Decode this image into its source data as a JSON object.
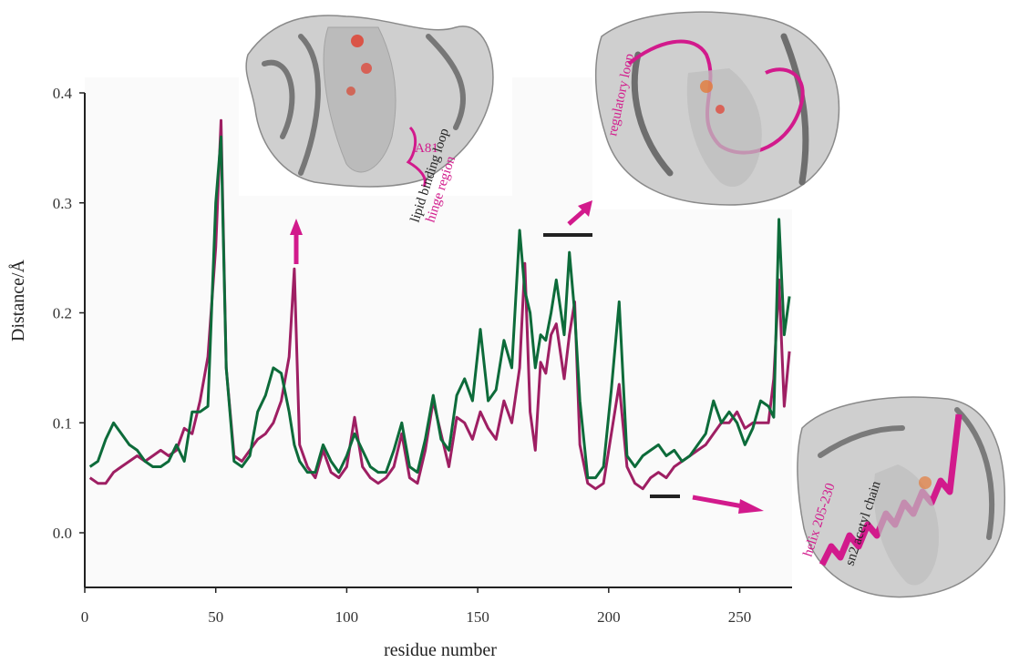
{
  "chart_data": {
    "type": "line",
    "xlabel": "residue number",
    "ylabel": "Distance/Å",
    "xlim": [
      0,
      270
    ],
    "ylim": [
      -0.05,
      0.4
    ],
    "x_ticks": [
      0,
      50,
      100,
      150,
      200,
      250
    ],
    "y_ticks": [
      0.0,
      0.1,
      0.2,
      0.3,
      0.4
    ],
    "y_tick_labels": [
      "0.0",
      "0.1",
      "0.2",
      "0.3",
      "0.4"
    ],
    "grid": false,
    "colors": {
      "series_magenta": "#9e1f63",
      "series_green": "#0d6b3a",
      "accent": "#d21a8c"
    },
    "series": [
      {
        "color": "#9e1f63",
        "x": [
          2,
          5,
          8,
          11,
          14,
          17,
          20,
          23,
          26,
          29,
          32,
          35,
          38,
          41,
          44,
          47,
          50,
          52,
          54,
          57,
          60,
          63,
          66,
          69,
          72,
          75,
          78,
          80,
          82,
          85,
          88,
          91,
          94,
          97,
          100,
          103,
          106,
          109,
          112,
          115,
          118,
          121,
          124,
          127,
          130,
          133,
          136,
          139,
          142,
          145,
          148,
          151,
          154,
          157,
          160,
          163,
          166,
          168,
          170,
          172,
          174,
          176,
          178,
          180,
          183,
          185,
          187,
          189,
          192,
          195,
          198,
          201,
          204,
          207,
          210,
          213,
          216,
          219,
          222,
          225,
          228,
          231,
          234,
          237,
          240,
          243,
          246,
          249,
          252,
          255,
          258,
          261,
          263,
          265,
          267,
          269
        ],
        "values": [
          0.05,
          0.045,
          0.045,
          0.055,
          0.06,
          0.065,
          0.07,
          0.065,
          0.07,
          0.075,
          0.07,
          0.075,
          0.095,
          0.09,
          0.12,
          0.16,
          0.26,
          0.375,
          0.15,
          0.07,
          0.065,
          0.075,
          0.085,
          0.09,
          0.1,
          0.12,
          0.16,
          0.24,
          0.08,
          0.06,
          0.05,
          0.075,
          0.055,
          0.05,
          0.06,
          0.105,
          0.06,
          0.05,
          0.045,
          0.05,
          0.06,
          0.09,
          0.05,
          0.045,
          0.075,
          0.12,
          0.09,
          0.06,
          0.105,
          0.1,
          0.085,
          0.11,
          0.095,
          0.085,
          0.12,
          0.1,
          0.15,
          0.245,
          0.11,
          0.075,
          0.155,
          0.145,
          0.18,
          0.19,
          0.14,
          0.18,
          0.21,
          0.08,
          0.045,
          0.04,
          0.045,
          0.09,
          0.135,
          0.06,
          0.045,
          0.04,
          0.05,
          0.055,
          0.05,
          0.06,
          0.065,
          0.07,
          0.075,
          0.08,
          0.09,
          0.1,
          0.1,
          0.11,
          0.095,
          0.1,
          0.1,
          0.1,
          0.14,
          0.23,
          0.115,
          0.165
        ]
      },
      {
        "color": "#0d6b3a",
        "x": [
          2,
          5,
          8,
          11,
          14,
          17,
          20,
          23,
          26,
          29,
          32,
          35,
          38,
          41,
          44,
          47,
          50,
          52,
          54,
          57,
          60,
          63,
          66,
          69,
          72,
          75,
          78,
          80,
          82,
          85,
          88,
          91,
          94,
          97,
          100,
          103,
          106,
          109,
          112,
          115,
          118,
          121,
          124,
          127,
          130,
          133,
          136,
          139,
          142,
          145,
          148,
          151,
          154,
          157,
          160,
          163,
          166,
          168,
          170,
          172,
          174,
          176,
          178,
          180,
          183,
          185,
          187,
          189,
          192,
          195,
          198,
          201,
          204,
          207,
          210,
          213,
          216,
          219,
          222,
          225,
          228,
          231,
          234,
          237,
          240,
          243,
          246,
          249,
          252,
          255,
          258,
          261,
          263,
          265,
          267,
          269
        ],
        "values": [
          0.06,
          0.065,
          0.085,
          0.1,
          0.09,
          0.08,
          0.075,
          0.065,
          0.06,
          0.06,
          0.065,
          0.08,
          0.065,
          0.11,
          0.11,
          0.115,
          0.3,
          0.36,
          0.15,
          0.065,
          0.06,
          0.07,
          0.11,
          0.125,
          0.15,
          0.145,
          0.11,
          0.08,
          0.065,
          0.055,
          0.055,
          0.08,
          0.065,
          0.055,
          0.07,
          0.09,
          0.075,
          0.06,
          0.055,
          0.055,
          0.075,
          0.1,
          0.06,
          0.055,
          0.085,
          0.125,
          0.085,
          0.075,
          0.125,
          0.14,
          0.12,
          0.185,
          0.12,
          0.13,
          0.175,
          0.15,
          0.275,
          0.22,
          0.2,
          0.15,
          0.18,
          0.175,
          0.2,
          0.23,
          0.18,
          0.255,
          0.2,
          0.12,
          0.05,
          0.05,
          0.06,
          0.13,
          0.21,
          0.07,
          0.06,
          0.07,
          0.075,
          0.08,
          0.07,
          0.075,
          0.065,
          0.07,
          0.08,
          0.09,
          0.12,
          0.1,
          0.11,
          0.1,
          0.08,
          0.095,
          0.12,
          0.115,
          0.105,
          0.285,
          0.18,
          0.215
        ]
      }
    ],
    "annotations": {
      "inset_top_left": {
        "lines": [
          "A81",
          "lipid binding loop",
          "hinge region"
        ],
        "colors": [
          "#d21a8c",
          "#222222",
          "#d21a8c"
        ]
      },
      "inset_top_right": {
        "lines": [
          "regulatory loop"
        ],
        "colors": [
          "#d21a8c"
        ]
      },
      "inset_bottom_right": {
        "lines": [
          "helix 205-230",
          "sn2 acetyl chain"
        ],
        "colors": [
          "#d21a8c",
          "#222222"
        ]
      }
    }
  }
}
